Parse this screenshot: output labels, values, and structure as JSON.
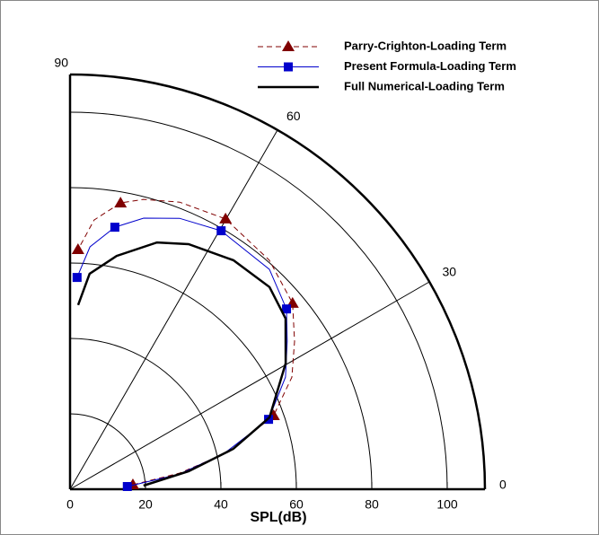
{
  "chart_data": {
    "type": "polar",
    "axis_label": "SPL(dB)",
    "rlim": [
      0,
      110
    ],
    "rticks": [
      0,
      20,
      40,
      60,
      80,
      100
    ],
    "thetalim": [
      0,
      90
    ],
    "thetaticks": [
      0,
      30,
      60,
      90
    ],
    "grid": true,
    "legend": "top-right",
    "series": [
      {
        "name": "Parry-Crighton-Loading Term",
        "color": "#800000",
        "dash": true,
        "marker": "triangle",
        "line": {
          "theta": [
            4.1,
            8.4,
            13.3,
            19.9,
            26.8,
            33.4,
            39.9,
            49.0,
            60.1,
            69.1,
            75.8,
            80.0,
            84.9,
            88.1
          ],
          "r": [
            16.7,
            29.4,
            43.3,
            57.4,
            65.9,
            71.3,
            76.9,
            80.5,
            82.7,
            81.5,
            79.3,
            77.1,
            71.7,
            63.6
          ]
        },
        "markers": {
          "theta": [
            4.1,
            19.9,
            39.9,
            60.1,
            80.0,
            88.1
          ],
          "r": [
            16.7,
            57.4,
            76.9,
            82.7,
            77.1,
            63.6
          ]
        }
      },
      {
        "name": "Present Formula-Loading Term",
        "color": "#0000cc",
        "dash": false,
        "marker": "square",
        "line": {
          "theta": [
            2.7,
            7.9,
            13.1,
            19.4,
            27.5,
            34.3,
            39.8,
            47.8,
            59.7,
            68.0,
            74.8,
            80.3,
            85.3,
            88.1
          ],
          "r": [
            15.2,
            29.3,
            42.0,
            55.8,
            64.4,
            69.7,
            74.7,
            78.7,
            79.4,
            77.5,
            74.5,
            70.5,
            64.5,
            56.2
          ]
        },
        "markers": {
          "theta": [
            2.7,
            19.4,
            39.8,
            59.7,
            80.3,
            88.1
          ],
          "r": [
            15.2,
            55.8,
            74.7,
            79.4,
            70.5,
            56.2
          ]
        }
      },
      {
        "name": "Full Numerical-Loading Term",
        "color": "#000000",
        "dash": false,
        "marker": "none",
        "line": {
          "theta": [
            2.8,
            8.6,
            13.9,
            19.8,
            30.3,
            38.4,
            45.4,
            54.5,
            64.2,
            70.6,
            78.7,
            84.8,
            87.5
          ],
          "r": [
            19.5,
            31.8,
            44.6,
            56.2,
            66.2,
            72.9,
            75.3,
            74.6,
            72.2,
            69.4,
            63.1,
            57.4,
            48.9
          ]
        }
      }
    ]
  }
}
